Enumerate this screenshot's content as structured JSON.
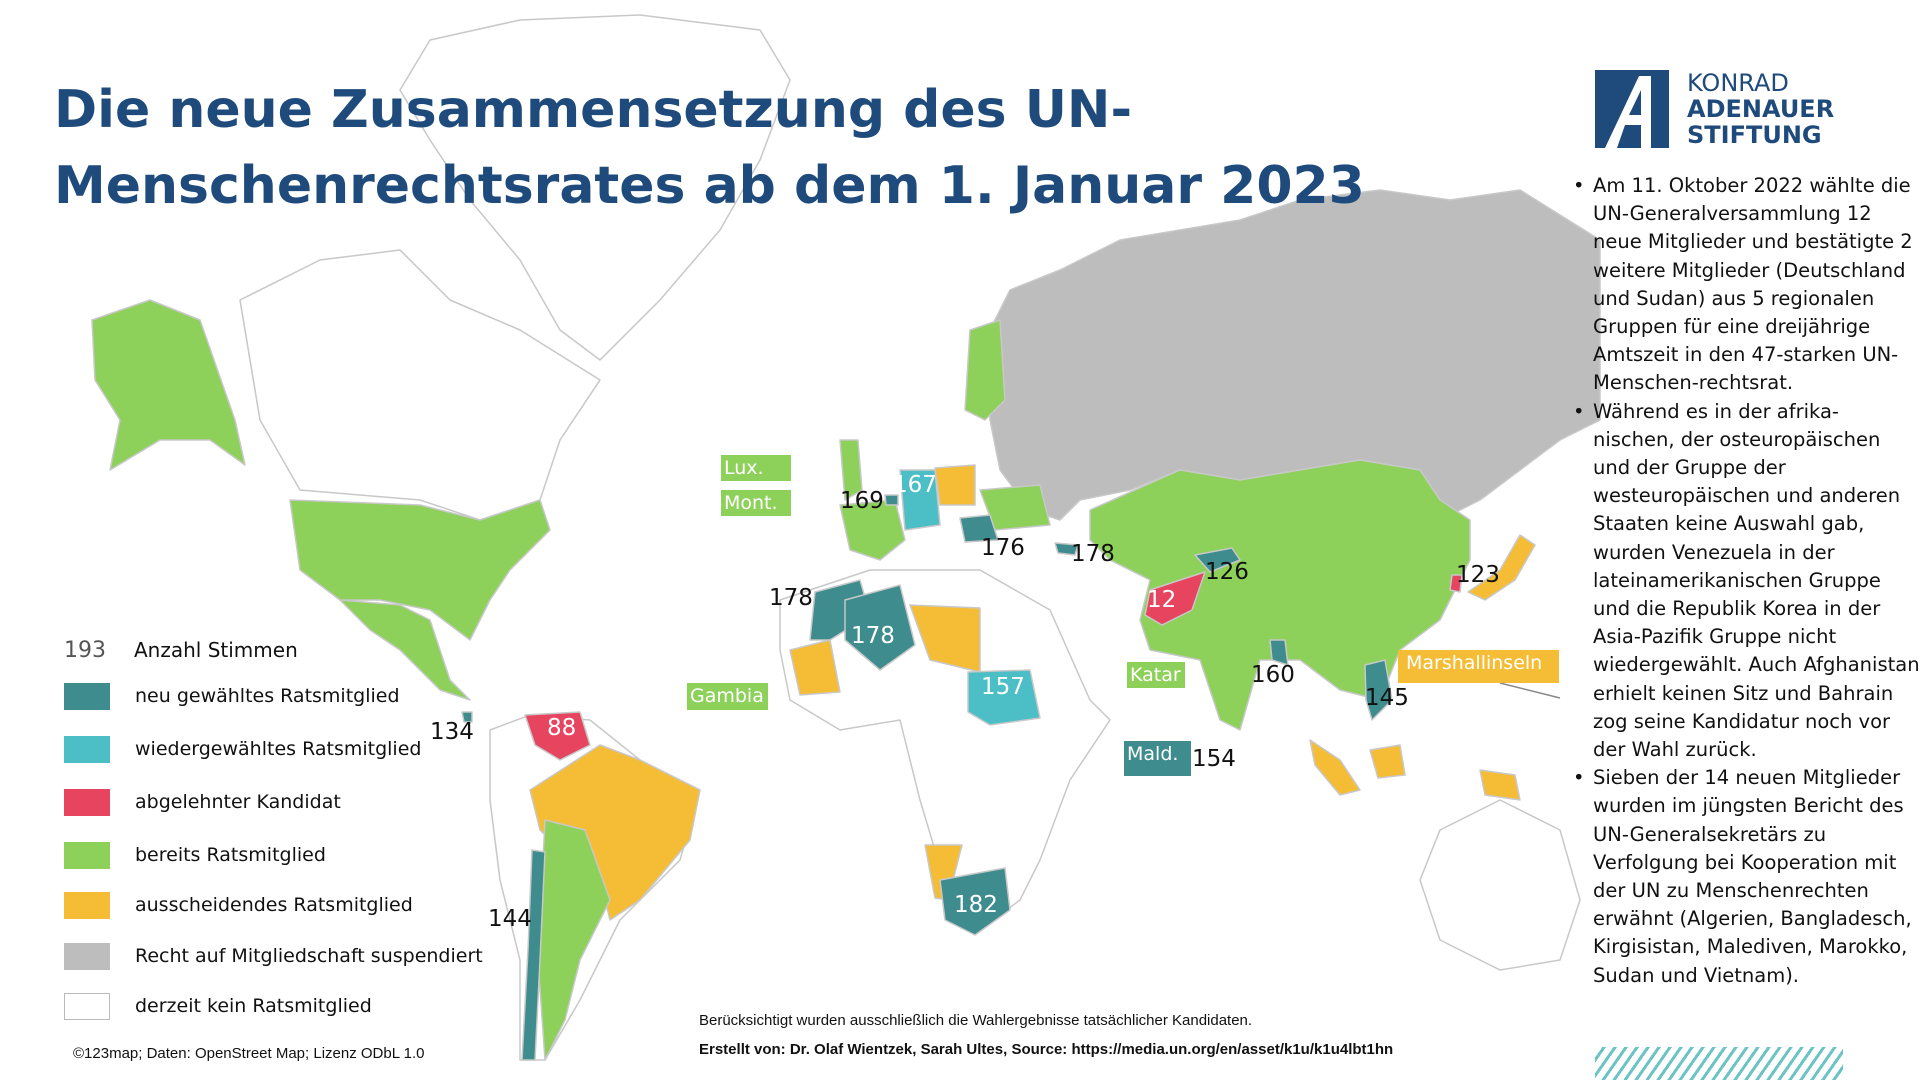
{
  "title": {
    "line1": "Die neue Zusammensetzung des UN-",
    "line2": "Menschenrechtsrates ab dem 1. Januar 2023"
  },
  "logo": {
    "line1": "KONRAD",
    "line2": "ADENAUER",
    "line3": "STIFTUNG"
  },
  "colors": {
    "title": "#1f4a7c",
    "neu_gewaehlt": "#3f8c8f",
    "wiedergewaehlt": "#4bbec6",
    "abgelehnt": "#e6445f",
    "bereits": "#8dd05a",
    "ausscheidend": "#f5bd36",
    "suspendiert": "#bdbdbd",
    "kein": "#ffffff"
  },
  "bullets": [
    "Am 11. Oktober 2022 wählte die UN-Generalversammlung 12 neue Mitglieder und bestätigte 2 weitere Mitglieder (Deutschland und Sudan) aus 5 regionalen Gruppen für eine dreijährige Amtszeit in den 47-starken UN-Menschen-rechtsrat.",
    "Während es in der afrika-nischen, der osteuropäischen und der Gruppe der westeuropäischen und anderen Staaten keine Auswahl gab, wurden Venezuela in der lateinamerikanischen Gruppe und die Republik Korea in der Asia-Pazifik Gruppe nicht wiedergewählt. Auch Afghanistan erhielt keinen Sitz und Bahrain zog seine Kandidatur noch vor der Wahl zurück.",
    "Sieben der 14 neuen Mitglieder wurden im jüngsten Bericht des UN-Generalsekretärs zu Verfolgung bei Kooperation mit der UN zu Menschenrechten erwähnt (Algerien, Bangladesch, Kirgisistan, Malediven, Marokko, Sudan und Vietnam)."
  ],
  "legend": {
    "total_value": "193",
    "total_label": "Anzahl Stimmen",
    "items": [
      {
        "label": "neu gewähltes Ratsmitglied",
        "color": "#3f8c8f"
      },
      {
        "label": "wiedergewähltes Ratsmitglied",
        "color": "#4bbec6"
      },
      {
        "label": "abgelehnter Kandidat",
        "color": "#e6445f"
      },
      {
        "label": "bereits Ratsmitglied",
        "color": "#8dd05a"
      },
      {
        "label": "ausscheidendes Ratsmitglied",
        "color": "#f5bd36"
      },
      {
        "label": "Recht auf Mitgliedschaft suspendiert",
        "color": "#bdbdbd"
      },
      {
        "label": "derzeit kein Ratsmitglied",
        "color": "#ffffff"
      }
    ]
  },
  "votes": {
    "germany": "167",
    "belgium": "169",
    "romania": "176",
    "georgia": "178",
    "morocco": "178",
    "algeria": "178",
    "afghanistan": "12",
    "kyrgyzstan": "126",
    "korea": "123",
    "bangladesh": "160",
    "vietnam": "145",
    "sudan": "157",
    "maldives": "154",
    "costa_rica": "134",
    "venezuela": "88",
    "chile": "144",
    "south_africa": "182"
  },
  "small_states": {
    "lux": "Lux.",
    "mont": "Mont.",
    "gambia": "Gambia",
    "katar": "Katar",
    "mald": "Mald.",
    "marshall": "Marshallinseln"
  },
  "footer": {
    "note": "Berücksichtigt wurden ausschließlich die Wahlergebnisse tatsächlicher Kandidaten.",
    "credit": "Erstellt von: Dr. Olaf Wientzek, Sarah Ultes, Source: https://media.un.org/en/asset/k1u/k1u4lbt1hn",
    "map_credit": "©123map; Daten: OpenStreet Map; Lizenz ODbL 1.0"
  }
}
